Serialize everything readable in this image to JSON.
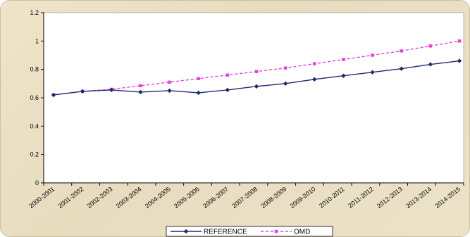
{
  "chart_data": {
    "type": "line",
    "title": "",
    "xlabel": "",
    "ylabel": "",
    "ylim": [
      0,
      1.2
    ],
    "yticks": [
      0,
      0.2,
      0.4,
      0.6,
      0.8,
      1,
      1.2
    ],
    "ytick_labels": [
      "0",
      "0.2",
      "0.4",
      "0.6",
      "0.8",
      "1",
      "1.2"
    ],
    "grid": false,
    "legend_position": "bottom",
    "categories": [
      "2000-2001",
      "2001-2002",
      "2002-2003",
      "2003-2004",
      "2004-2005",
      "2005-2006",
      "2006-2007",
      "2007-2008",
      "2008-2009",
      "2009-2010",
      "2010-2011",
      "2011-2012",
      "2012-2013",
      "2013-2014",
      "2014-2015"
    ],
    "series": [
      {
        "name": "REFERENCE",
        "color": "#1f2a6e",
        "style": "solid",
        "marker": "diamond",
        "values": [
          0.62,
          0.645,
          0.655,
          0.64,
          0.65,
          0.635,
          0.655,
          0.68,
          0.7,
          0.73,
          0.755,
          0.78,
          0.805,
          0.835,
          0.86
        ]
      },
      {
        "name": "OMD",
        "color": "#ee3ae0",
        "style": "dashed",
        "marker": "square",
        "values": [
          0.62,
          0.645,
          0.66,
          0.685,
          0.71,
          0.735,
          0.76,
          0.785,
          0.81,
          0.84,
          0.87,
          0.9,
          0.93,
          0.965,
          1.0
        ]
      }
    ]
  }
}
